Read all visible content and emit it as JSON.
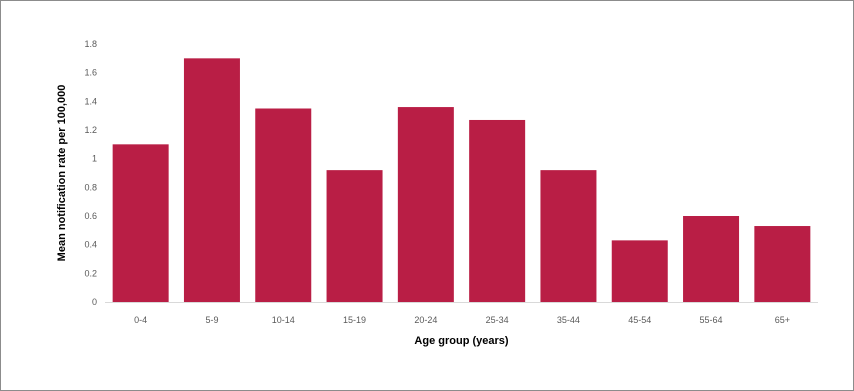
{
  "chart_data": {
    "type": "bar",
    "title": "",
    "xlabel": "Age group (years)",
    "ylabel": "Mean notification rate per 100,000",
    "categories": [
      "0-4",
      "5-9",
      "10-14",
      "15-19",
      "20-24",
      "25-34",
      "35-44",
      "45-54",
      "55-64",
      "65+"
    ],
    "values": [
      1.1,
      1.7,
      1.35,
      0.92,
      1.36,
      1.27,
      0.92,
      0.43,
      0.6,
      0.53
    ],
    "ylim": [
      0,
      1.8
    ],
    "yticks": [
      "0",
      "0.2",
      "0.4",
      "0.6",
      "0.8",
      "1",
      "1.2",
      "1.4",
      "1.6",
      "1.8"
    ],
    "bar_color": "#b91e45",
    "grid": false
  }
}
